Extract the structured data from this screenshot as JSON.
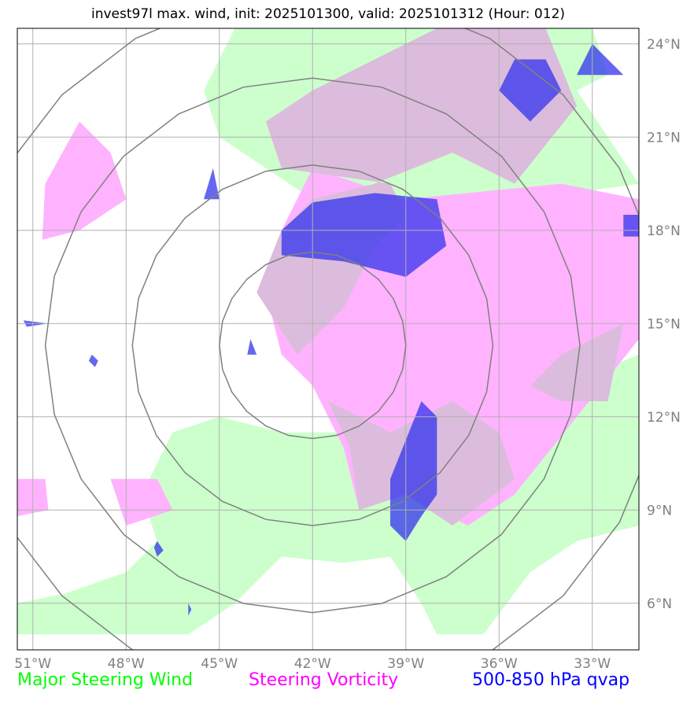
{
  "title": "invest97l max. wind, init: 2025101300, valid: 2025101312 (Hour: 012)",
  "legend": {
    "wind": {
      "label": "Major Steering Wind",
      "color": "#00ff00"
    },
    "vorticity": {
      "label": "Steering Vorticity",
      "color": "#ff00ff"
    },
    "qvap": {
      "label": "500-850 hPa qvap",
      "color": "#0000ff"
    }
  },
  "map": {
    "lon_range": [
      -51.5,
      -31.5
    ],
    "lat_range": [
      4.5,
      24.5
    ],
    "lon_ticks": [
      {
        "value": -51,
        "label": "51°W"
      },
      {
        "value": -48,
        "label": "48°W"
      },
      {
        "value": -45,
        "label": "45°W"
      },
      {
        "value": -42,
        "label": "42°W"
      },
      {
        "value": -39,
        "label": "39°W"
      },
      {
        "value": -36,
        "label": "36°W"
      },
      {
        "value": -33,
        "label": "33°W"
      }
    ],
    "lat_ticks": [
      {
        "value": 6,
        "label": "6°N"
      },
      {
        "value": 9,
        "label": "9°N"
      },
      {
        "value": 12,
        "label": "12°N"
      },
      {
        "value": 15,
        "label": "15°N"
      },
      {
        "value": 18,
        "label": "18°N"
      },
      {
        "value": 21,
        "label": "21°N"
      },
      {
        "value": 24,
        "label": "24°N"
      }
    ],
    "grid": true,
    "range_rings": {
      "center": [
        -42,
        14.3
      ],
      "radii_deg": [
        3,
        5.8,
        8.6,
        11.4
      ]
    },
    "colors": {
      "wind_fill": "#ccffcc",
      "vorticity_fill": "#ffb3ff",
      "overlap_fill": "#dcbcdc",
      "qvap_fill": "#3333ee",
      "ring": "#808080",
      "grid": "#b0b0b0"
    },
    "fields": {
      "wind": [
        [
          [
            -51.5,
            5.0
          ],
          [
            -46.0,
            5.0
          ],
          [
            -44.5,
            6.0
          ],
          [
            -43.0,
            7.5
          ],
          [
            -41.0,
            7.3
          ],
          [
            -39.5,
            7.5
          ],
          [
            -38.5,
            6.0
          ],
          [
            -38.0,
            5.0
          ],
          [
            -36.5,
            5.0
          ],
          [
            -35.0,
            7.0
          ],
          [
            -33.5,
            8.0
          ],
          [
            -31.5,
            8.5
          ],
          [
            -31.5,
            14.0
          ],
          [
            -34.0,
            13.0
          ],
          [
            -37.0,
            12.0
          ],
          [
            -40.0,
            11.5
          ],
          [
            -43.0,
            11.5
          ],
          [
            -45.0,
            12.0
          ],
          [
            -46.5,
            11.5
          ],
          [
            -47.5,
            9.5
          ],
          [
            -47.0,
            8.0
          ],
          [
            -48.0,
            7.0
          ],
          [
            -50.0,
            6.3
          ],
          [
            -51.5,
            6.0
          ]
        ],
        [
          [
            -45.5,
            22.5
          ],
          [
            -44.5,
            24.5
          ],
          [
            -33.0,
            24.5
          ],
          [
            -32.5,
            23.0
          ],
          [
            -33.5,
            22.5
          ],
          [
            -32.5,
            21.0
          ],
          [
            -31.5,
            19.5
          ],
          [
            -35.0,
            19.0
          ],
          [
            -38.5,
            17.0
          ],
          [
            -40.0,
            16.0
          ],
          [
            -42.0,
            19.0
          ],
          [
            -45.0,
            21.0
          ]
        ]
      ],
      "vorticity": [
        [
          [
            -42.0,
            20.0
          ],
          [
            -39.0,
            19.0
          ],
          [
            -34.0,
            19.5
          ],
          [
            -31.5,
            19.0
          ],
          [
            -31.5,
            14.5
          ],
          [
            -33.5,
            12.0
          ],
          [
            -35.5,
            9.5
          ],
          [
            -37.0,
            8.5
          ],
          [
            -39.0,
            9.5
          ],
          [
            -40.5,
            9.0
          ],
          [
            -41.0,
            11.0
          ],
          [
            -42.0,
            13.0
          ],
          [
            -43.0,
            14.0
          ],
          [
            -43.5,
            16.0
          ],
          [
            -43.0,
            18.0
          ]
        ],
        [
          [
            -50.7,
            17.7
          ],
          [
            -50.6,
            19.5
          ],
          [
            -49.5,
            21.5
          ],
          [
            -48.5,
            20.5
          ],
          [
            -48.0,
            19.0
          ],
          [
            -49.5,
            18.0
          ]
        ],
        [
          [
            -48.5,
            10.0
          ],
          [
            -47.0,
            10.0
          ],
          [
            -46.5,
            9.0
          ],
          [
            -48.0,
            8.5
          ]
        ],
        [
          [
            -51.5,
            10.0
          ],
          [
            -50.6,
            10.0
          ],
          [
            -50.5,
            9.0
          ],
          [
            -51.5,
            8.8
          ]
        ]
      ],
      "overlap": [
        [
          [
            -43.5,
            21.5
          ],
          [
            -42.0,
            22.5
          ],
          [
            -38.0,
            24.5
          ],
          [
            -34.5,
            24.5
          ],
          [
            -33.5,
            22.0
          ],
          [
            -35.5,
            19.5
          ],
          [
            -37.5,
            20.5
          ],
          [
            -40.0,
            19.5
          ],
          [
            -42.0,
            19.0
          ],
          [
            -43.0,
            18.0
          ],
          [
            -43.8,
            16.0
          ],
          [
            -42.5,
            14.0
          ],
          [
            -41.0,
            15.5
          ],
          [
            -40.0,
            17.5
          ],
          [
            -39.0,
            18.5
          ],
          [
            -39.5,
            19.5
          ],
          [
            -43.0,
            20.0
          ]
        ],
        [
          [
            -41.5,
            12.5
          ],
          [
            -39.5,
            11.5
          ],
          [
            -37.5,
            12.5
          ],
          [
            -36.0,
            11.5
          ],
          [
            -35.5,
            10.0
          ],
          [
            -37.5,
            8.5
          ],
          [
            -39.0,
            9.5
          ],
          [
            -40.5,
            9.0
          ],
          [
            -40.8,
            11.0
          ]
        ],
        [
          [
            -35.0,
            13.0
          ],
          [
            -34.0,
            14.0
          ],
          [
            -32.0,
            15.0
          ],
          [
            -32.5,
            12.5
          ],
          [
            -34.0,
            12.5
          ]
        ]
      ],
      "qvap": [
        [
          [
            -43.0,
            18.0
          ],
          [
            -42.0,
            18.9
          ],
          [
            -40.0,
            19.2
          ],
          [
            -38.0,
            19.0
          ],
          [
            -37.7,
            17.5
          ],
          [
            -39.0,
            16.5
          ],
          [
            -41.0,
            17.0
          ],
          [
            -43.0,
            17.2
          ]
        ],
        [
          [
            -39.5,
            10.0
          ],
          [
            -38.5,
            12.5
          ],
          [
            -38.0,
            12.0
          ],
          [
            -38.0,
            9.5
          ],
          [
            -38.5,
            8.8
          ],
          [
            -39.0,
            8.0
          ],
          [
            -39.5,
            8.5
          ]
        ],
        [
          [
            -36.0,
            22.5
          ],
          [
            -35.5,
            23.5
          ],
          [
            -34.5,
            23.5
          ],
          [
            -34.0,
            22.5
          ],
          [
            -35.0,
            21.5
          ]
        ],
        [
          [
            -33.5,
            23.0
          ],
          [
            -32.0,
            23.0
          ],
          [
            -32.5,
            23.5
          ],
          [
            -33.0,
            24.0
          ]
        ],
        [
          [
            -31.5,
            18.5
          ],
          [
            -32.0,
            18.5
          ],
          [
            -32.0,
            17.8
          ],
          [
            -31.5,
            17.8
          ]
        ],
        [
          [
            -45.5,
            19.0
          ],
          [
            -45.2,
            20.0
          ],
          [
            -45.0,
            19.0
          ]
        ],
        [
          [
            -51.3,
            15.1
          ],
          [
            -50.5,
            15.0
          ],
          [
            -51.2,
            14.9
          ]
        ],
        [
          [
            -49.1,
            14.0
          ],
          [
            -48.9,
            13.8
          ],
          [
            -49.0,
            13.6
          ],
          [
            -49.2,
            13.8
          ]
        ],
        [
          [
            -44.0,
            14.5
          ],
          [
            -43.8,
            14.0
          ],
          [
            -44.1,
            14.0
          ]
        ],
        [
          [
            -47.0,
            8.0
          ],
          [
            -46.8,
            7.7
          ],
          [
            -47.0,
            7.5
          ],
          [
            -47.1,
            7.8
          ]
        ],
        [
          [
            -46.0,
            6.0
          ],
          [
            -45.9,
            5.8
          ],
          [
            -46.0,
            5.6
          ]
        ]
      ]
    }
  }
}
